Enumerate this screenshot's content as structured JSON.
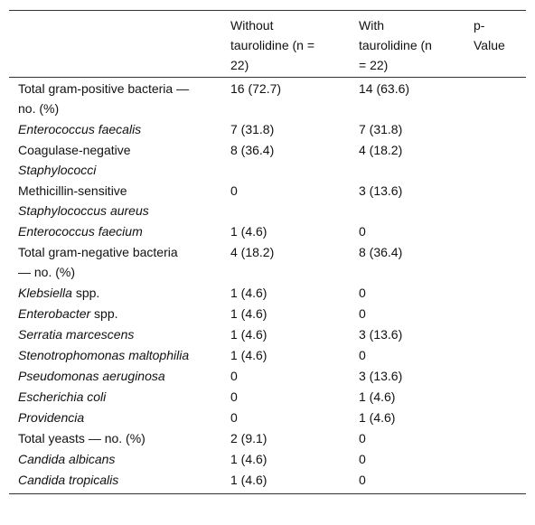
{
  "table": {
    "header": [
      "Without taurolidine (n = 22)",
      "With taurolidine (n = 22)",
      "p-Value"
    ],
    "rows": [
      [
        [
          {
            "text": "Total gram-positive bacteria — no. (%)",
            "italic": false
          }
        ],
        "16 (72.7)",
        "14 (63.6)"
      ],
      [
        [
          {
            "text": "Enterococcus faecalis",
            "italic": true
          }
        ],
        "7 (31.8)",
        "7 (31.8)"
      ],
      [
        [
          {
            "text": "Coagulase-negative ",
            "italic": false
          },
          {
            "text": "Staphylococci",
            "italic": true
          }
        ],
        "8 (36.4)",
        "4 (18.2)"
      ],
      [
        [
          {
            "text": "Methicillin-sensitive ",
            "italic": false
          },
          {
            "text": "Staphylococcus aureus",
            "italic": true
          }
        ],
        "0",
        "3 (13.6)"
      ],
      [
        [
          {
            "text": "Enterococcus faecium",
            "italic": true
          }
        ],
        "1 (4.6)",
        "0"
      ],
      [
        [
          {
            "text": "Total gram-negative bacteria — no. (%)",
            "italic": false
          }
        ],
        "4 (18.2)",
        "8 (36.4)"
      ],
      [
        [
          {
            "text": "Klebsiella",
            "italic": true
          },
          {
            "text": " spp.",
            "italic": false
          }
        ],
        "1 (4.6)",
        "0"
      ],
      [
        [
          {
            "text": "Enterobacter",
            "italic": true
          },
          {
            "text": " spp.",
            "italic": false
          }
        ],
        "1 (4.6)",
        "0"
      ],
      [
        [
          {
            "text": "Serratia marcescens",
            "italic": true
          }
        ],
        "1 (4.6)",
        "3 (13.6)"
      ],
      [
        [
          {
            "text": "Stenotrophomonas maltophilia",
            "italic": true
          }
        ],
        "1 (4.6)",
        "0"
      ],
      [
        [
          {
            "text": "Pseudomonas aeruginosa",
            "italic": true
          }
        ],
        "0",
        "3 (13.6)"
      ],
      [
        [
          {
            "text": "Escherichia coli",
            "italic": true
          }
        ],
        "0",
        "1 (4.6)"
      ],
      [
        [
          {
            "text": "Providencia",
            "italic": true
          }
        ],
        "0",
        "1 (4.6)"
      ],
      [
        [
          {
            "text": "Total yeasts — no. (%)",
            "italic": false
          }
        ],
        "2 (9.1)",
        "0"
      ],
      [
        [
          {
            "text": "Candida albicans",
            "italic": true
          }
        ],
        "1 (4.6)",
        "0"
      ],
      [
        [
          {
            "text": "Candida tropicalis",
            "italic": true
          }
        ],
        "1 (4.6)",
        "0"
      ]
    ]
  }
}
